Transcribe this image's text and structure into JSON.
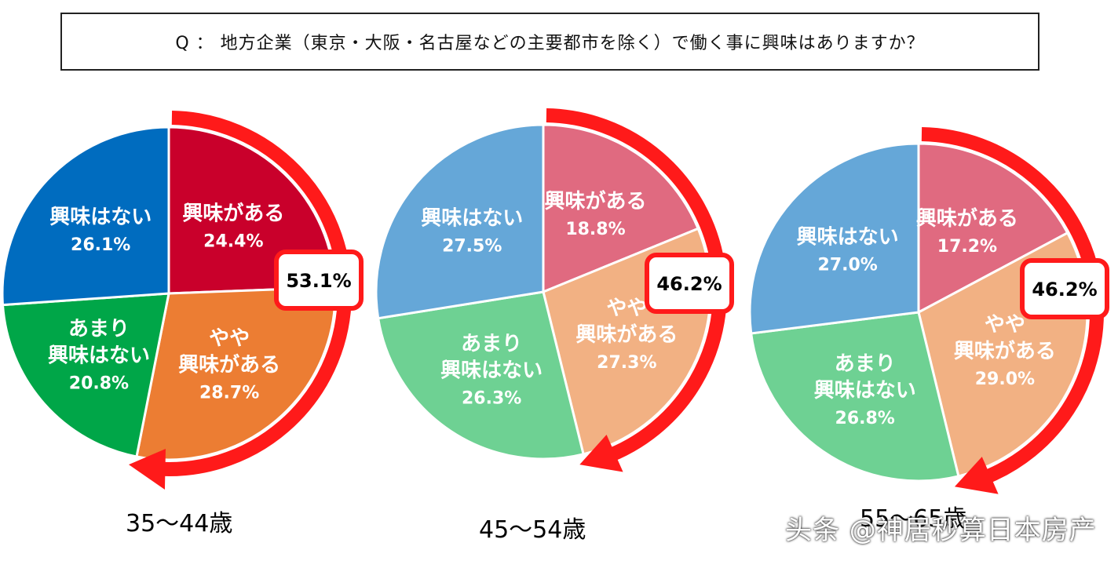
{
  "question": "Q ： 地方企業（東京・大阪・名古屋などの主要都市を除く）で働く事に興味はありますか？",
  "watermark": "头条 @神居秒算日本房产",
  "chart_data": [
    {
      "type": "pie",
      "group_label": "35～44歳",
      "callout": "53.1%",
      "slices": [
        {
          "label": [
            "興味がある"
          ],
          "value_text": "24.4%",
          "value": 24.4,
          "color": "#c9002b"
        },
        {
          "label": [
            "やや",
            "興味がある"
          ],
          "value_text": "28.7%",
          "value": 28.7,
          "color": "#ec7d33"
        },
        {
          "label": [
            "あまり",
            "興味はない"
          ],
          "value_text": "20.8%",
          "value": 20.8,
          "color": "#00a648"
        },
        {
          "label": [
            "興味はない"
          ],
          "value_text": "26.1%",
          "value": 26.1,
          "color": "#006cbf"
        }
      ]
    },
    {
      "type": "pie",
      "group_label": "45～54歳",
      "callout": "46.2%",
      "slices": [
        {
          "label": [
            "興味がある"
          ],
          "value_text": "18.8%",
          "value": 18.8,
          "color": "#e06a80"
        },
        {
          "label": [
            "やや",
            "興味がある"
          ],
          "value_text": "27.3%",
          "value": 27.3,
          "color": "#f2b183"
        },
        {
          "label": [
            "あまり",
            "興味はない"
          ],
          "value_text": "26.3%",
          "value": 26.3,
          "color": "#6ed193"
        },
        {
          "label": [
            "興味はない"
          ],
          "value_text": "27.5%",
          "value": 27.5,
          "color": "#65a7d8"
        }
      ]
    },
    {
      "type": "pie",
      "group_label": "55～65歳",
      "callout": "46.2%",
      "slices": [
        {
          "label": [
            "興味がある"
          ],
          "value_text": "17.2%",
          "value": 17.2,
          "color": "#e06a80"
        },
        {
          "label": [
            "やや",
            "興味がある"
          ],
          "value_text": "29.0%",
          "value": 29.0,
          "color": "#f2b183"
        },
        {
          "label": [
            "あまり",
            "興味はない"
          ],
          "value_text": "26.8%",
          "value": 26.8,
          "color": "#6ed193"
        },
        {
          "label": [
            "興味はない"
          ],
          "value_text": "27.0%",
          "value": 27.0,
          "color": "#65a7d8"
        }
      ]
    }
  ]
}
